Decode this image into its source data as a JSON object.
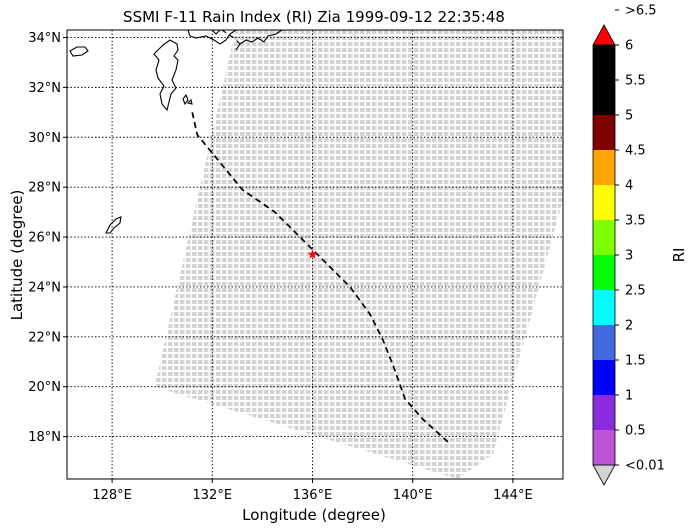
{
  "chart_data": {
    "type": "map",
    "title": "SSMI F-11 Rain Index (RI) Zia 1999-09-12 22:35:48",
    "xlabel": "Longitude (degree)",
    "ylabel": "Latitude (degree)",
    "xlim": [
      126.2,
      146.0
    ],
    "ylim": [
      16.3,
      34.3
    ],
    "xticks": [
      {
        "value": 128,
        "label": "128°E"
      },
      {
        "value": 132,
        "label": "132°E"
      },
      {
        "value": 136,
        "label": "136°E"
      },
      {
        "value": 140,
        "label": "140°E"
      },
      {
        "value": 144,
        "label": "144°E"
      }
    ],
    "yticks": [
      {
        "value": 18,
        "label": "18°N"
      },
      {
        "value": 20,
        "label": "20°N"
      },
      {
        "value": 22,
        "label": "22°N"
      },
      {
        "value": 24,
        "label": "24°N"
      },
      {
        "value": 26,
        "label": "26°N"
      },
      {
        "value": 28,
        "label": "28°N"
      },
      {
        "value": 30,
        "label": "30°N"
      },
      {
        "value": 32,
        "label": "32°N"
      },
      {
        "value": 34,
        "label": "34°N"
      }
    ],
    "grid": true,
    "swath": {
      "color": "#d3d3d3",
      "corners": [
        [
          129.7,
          20.0
        ],
        [
          133.2,
          35.5
        ],
        [
          146.0,
          35.5
        ],
        [
          146.0,
          27.5
        ],
        [
          143.2,
          17.3
        ],
        [
          141.8,
          16.3
        ]
      ]
    },
    "track": {
      "style": "dashed",
      "color": "#000000",
      "points": [
        [
          131.2,
          31.0
        ],
        [
          131.4,
          30.1
        ],
        [
          132.3,
          29.0
        ],
        [
          133.2,
          27.9
        ],
        [
          134.5,
          27.0
        ],
        [
          135.6,
          25.9
        ],
        [
          136.6,
          24.9
        ],
        [
          137.5,
          24.0
        ],
        [
          138.3,
          22.9
        ],
        [
          138.8,
          21.9
        ],
        [
          139.2,
          20.9
        ],
        [
          139.7,
          19.5
        ],
        [
          140.4,
          18.7
        ],
        [
          141.5,
          17.7
        ]
      ]
    },
    "storm_center": {
      "lon": 136.0,
      "lat": 25.3,
      "marker": "star",
      "color": "#ff0000"
    },
    "colorbar": {
      "label": "RI",
      "levels": [
        {
          "label": "<0.01",
          "color": "#d3d3d3"
        },
        {
          "label": "0.5",
          "color": "#ba55d3"
        },
        {
          "label": "1",
          "color": "#8a2be2"
        },
        {
          "label": "1.5",
          "color": "#0000ff"
        },
        {
          "label": "2",
          "color": "#4169e1"
        },
        {
          "label": "2.5",
          "color": "#00ffff"
        },
        {
          "label": "3",
          "color": "#00ff00"
        },
        {
          "label": "3.5",
          "color": "#7fff00"
        },
        {
          "label": "4",
          "color": "#ffff00"
        },
        {
          "label": "4.5",
          "color": "#ffa500"
        },
        {
          "label": "5",
          "color": "#800000"
        },
        {
          "label": "5.5",
          "color": "#000000"
        },
        {
          "label": "6",
          "color": "#000000"
        },
        {
          "label": ">6.5",
          "color": "#ff0000"
        }
      ]
    }
  }
}
